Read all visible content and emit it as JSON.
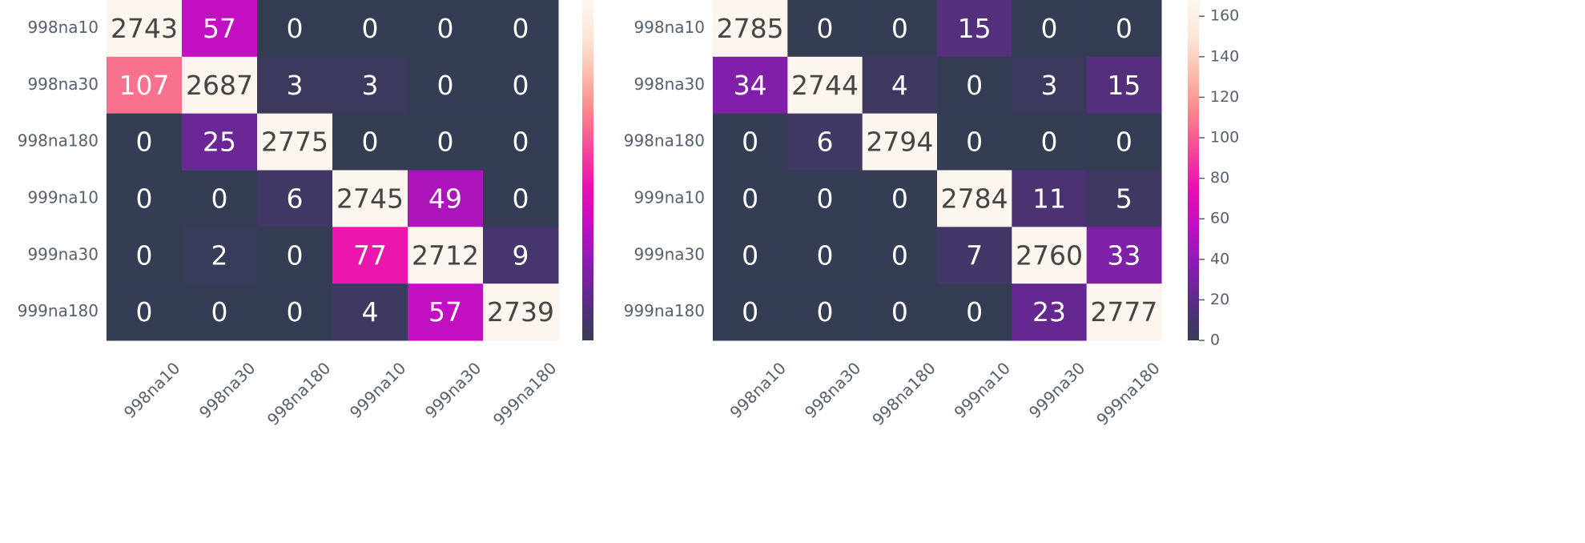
{
  "chart_data": [
    {
      "type": "heatmap",
      "x_categories": [
        "998na10",
        "998na30",
        "998na180",
        "999na10",
        "999na30",
        "999na180"
      ],
      "y_categories": [
        "998na10",
        "998na30",
        "998na180",
        "999na10",
        "999na30",
        "999na180"
      ],
      "values": [
        [
          2743,
          57,
          0,
          0,
          0,
          0
        ],
        [
          107,
          2687,
          3,
          3,
          0,
          0
        ],
        [
          0,
          25,
          2775,
          0,
          0,
          0
        ],
        [
          0,
          0,
          6,
          2745,
          49,
          0
        ],
        [
          0,
          2,
          0,
          77,
          2712,
          9
        ],
        [
          0,
          0,
          0,
          4,
          57,
          2739
        ]
      ],
      "zlim": [
        0,
        168
      ],
      "colormap": [
        "#353d55",
        "#5a2c86",
        "#8a1cb2",
        "#c00fc2",
        "#e80fb0",
        "#f5459a",
        "#fb8388",
        "#fbbba8",
        "#fce6d8",
        "#fdf6ee"
      ]
    },
    {
      "type": "heatmap",
      "x_categories": [
        "998na10",
        "998na30",
        "998na180",
        "999na10",
        "999na30",
        "999na180"
      ],
      "y_categories": [
        "998na10",
        "998na30",
        "998na180",
        "999na10",
        "999na30",
        "999na180"
      ],
      "values": [
        [
          2785,
          0,
          0,
          15,
          0,
          0
        ],
        [
          34,
          2744,
          4,
          0,
          3,
          15
        ],
        [
          0,
          6,
          2794,
          0,
          0,
          0
        ],
        [
          0,
          0,
          0,
          2784,
          11,
          5
        ],
        [
          0,
          0,
          0,
          7,
          2760,
          33
        ],
        [
          0,
          0,
          0,
          0,
          23,
          2777
        ]
      ],
      "zlim": [
        0,
        168
      ],
      "zticks": [
        0,
        20,
        40,
        60,
        80,
        100,
        120,
        140,
        160
      ],
      "colormap": [
        "#353d55",
        "#5a2c86",
        "#8a1cb2",
        "#c00fc2",
        "#e80fb0",
        "#f5459a",
        "#fb8388",
        "#fbbba8",
        "#fce6d8",
        "#fdf6ee"
      ]
    }
  ]
}
